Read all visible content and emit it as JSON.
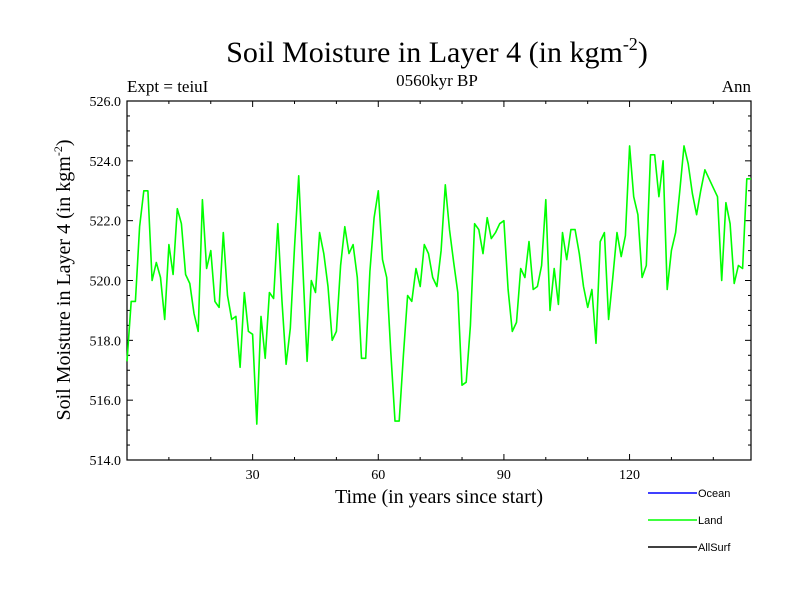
{
  "chart_data": {
    "type": "line",
    "title": "Soil Moisture in Layer 4 (in kgm",
    "title_superscript": "-2",
    "title_close": ")",
    "subtitle": "0560kyr BP",
    "expt_label": "Expt = teiuI",
    "season_label": "Ann",
    "xlabel": "Time (in years since start)",
    "ylabel": "Soil Moisture in Layer 4 (in kgm",
    "ylabel_superscript": "-2",
    "ylabel_close": ")",
    "xlim": [
      0,
      149
    ],
    "ylim": [
      514,
      526
    ],
    "xticks": [
      30,
      60,
      90,
      120
    ],
    "yticks": [
      514,
      516,
      518,
      520,
      522,
      524,
      526
    ],
    "ytick_labels": [
      "514.0",
      "516.0",
      "518.0",
      "520.0",
      "522.0",
      "524.0",
      "526.0"
    ],
    "xtick_labels": [
      "30",
      "60",
      "90",
      "120"
    ],
    "legend": [
      {
        "name": "Ocean",
        "color": "#0000ff"
      },
      {
        "name": "Land",
        "color": "#00ff00"
      },
      {
        "name": "AllSurf",
        "color": "#000000"
      }
    ],
    "series": [
      {
        "name": "Land",
        "color": "#00ff00",
        "x_start": 0,
        "values": [
          517.3,
          519.3,
          519.3,
          521.8,
          523.0,
          523.0,
          520.0,
          520.6,
          520.1,
          518.7,
          521.2,
          520.2,
          522.4,
          521.9,
          520.2,
          519.9,
          518.9,
          518.3,
          522.7,
          520.4,
          521.0,
          519.3,
          519.1,
          521.6,
          519.5,
          518.7,
          518.8,
          517.1,
          519.6,
          518.3,
          518.2,
          515.2,
          518.8,
          517.4,
          519.6,
          519.4,
          521.9,
          519.3,
          517.2,
          518.4,
          521.1,
          523.5,
          520.4,
          517.3,
          520.0,
          519.6,
          521.6,
          520.9,
          519.8,
          518.0,
          518.3,
          520.5,
          521.8,
          520.9,
          521.2,
          520.1,
          517.4,
          517.4,
          520.3,
          522.1,
          523.0,
          520.7,
          520.1,
          517.6,
          515.3,
          515.3,
          517.5,
          519.5,
          519.3,
          520.4,
          519.8,
          521.2,
          520.9,
          520.1,
          519.8,
          521.0,
          523.2,
          521.7,
          520.6,
          519.6,
          516.5,
          516.6,
          518.5,
          521.9,
          521.7,
          520.9,
          522.1,
          521.4,
          521.6,
          521.9,
          522.0,
          519.7,
          518.3,
          518.6,
          520.4,
          520.1,
          521.3,
          519.7,
          519.8,
          520.5,
          522.7,
          519.0,
          520.4,
          519.2,
          521.6,
          520.7,
          521.7,
          521.7,
          520.9,
          519.8,
          519.1,
          519.7,
          517.9,
          521.3,
          521.6,
          518.7,
          520.1,
          521.6,
          520.8,
          521.5,
          524.5,
          522.8,
          522.2,
          520.1,
          520.5,
          524.2,
          524.2,
          522.8,
          524.0,
          519.7,
          521.0,
          521.6,
          523.0,
          524.5,
          523.9,
          522.9,
          522.2,
          523.0,
          523.7,
          523.4,
          523.1,
          522.8,
          520.0,
          522.6,
          521.9,
          519.9,
          520.5,
          520.4,
          523.4,
          523.4
        ]
      }
    ]
  }
}
